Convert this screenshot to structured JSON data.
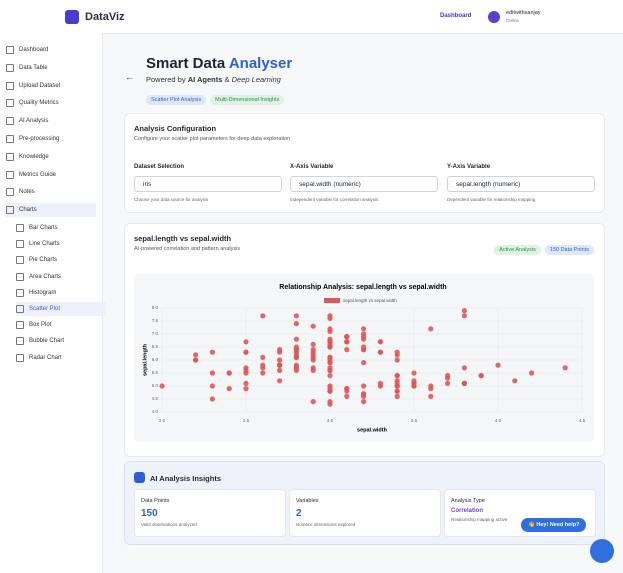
{
  "header": {
    "brand": "DataViz",
    "nav": "Dashboard",
    "user": "editwithsanjay",
    "status": "Online"
  },
  "sidebar": {
    "items": [
      "Dashboard",
      "Data Table",
      "Upload Dataset",
      "Quality Metrics",
      "AI Analysis",
      "Pre-processing",
      "Knowledge",
      "Metrics Guide",
      "Notes",
      "Charts"
    ],
    "subitems": [
      "Bar Charts",
      "Line Charts",
      "Pie Charts",
      "Area Charts",
      "Histogram",
      "Scatter Plot",
      "Box Plot",
      "Bubble Chart",
      "Radar Chart"
    ]
  },
  "hero": {
    "title": "Smart Data",
    "title_highlight": "Analyser",
    "powered": "Powered by",
    "agents": "AI Agents",
    "amp": "&",
    "deep": "Deep Learning",
    "badges": [
      "Scatter Plot Analysis",
      "Multi-Dimensional Insights"
    ]
  },
  "config": {
    "title": "Analysis Configuration",
    "subtitle": "Configure your scatter plot parameters for deep data exploration",
    "fields": [
      {
        "label": "Dataset Selection",
        "value": "iris",
        "help": "Choose your data source for analysis"
      },
      {
        "label": "X-Axis Variable",
        "value": "sepal.width (numeric)",
        "help": "Independent variable for correlation analysis"
      },
      {
        "label": "Y-Axis Variable",
        "value": "sepal.length (numeric)",
        "help": "Dependent variable for relationship mapping"
      }
    ]
  },
  "chart_card": {
    "title": "sepal.length vs sepal.width",
    "subtitle": "AI-powered correlation and pattern analysis",
    "badges": [
      "Active Analysis",
      "150 Data Points"
    ]
  },
  "chart_data": {
    "type": "scatter",
    "title": "Relationship Analysis: sepal.length vs sepal.width",
    "x_label": "sepal.width",
    "y_label": "sepal.length",
    "xlim": [
      2,
      4.5
    ],
    "xticks": [
      {
        "value": 2,
        "label": "2.0"
      },
      2.5,
      {
        "value": 3,
        "label": "3.0"
      },
      3.5,
      {
        "value": 4,
        "label": "4.0"
      },
      4.5
    ],
    "ylim": [
      4,
      8
    ],
    "yticks": [
      {
        "value": 4,
        "label": "4.0"
      },
      4.5,
      {
        "value": 5,
        "label": "5.0"
      },
      5.5,
      {
        "value": 6,
        "label": "6.0"
      },
      6.5,
      {
        "value": 7,
        "label": "7.0"
      },
      7.5,
      {
        "value": 8,
        "label": "8.0"
      }
    ],
    "grid": true,
    "legend": "top",
    "x": [
      3.5,
      3.0,
      3.2,
      3.1,
      3.6,
      3.9,
      3.4,
      3.4,
      2.9,
      3.1,
      3.7,
      3.4,
      3.0,
      3.0,
      4.0,
      4.4,
      3.9,
      3.5,
      3.8,
      3.8,
      3.4,
      3.7,
      3.6,
      3.3,
      3.4,
      3.0,
      3.4,
      3.5,
      3.4,
      3.2,
      3.1,
      3.4,
      4.1,
      4.2,
      3.1,
      3.2,
      3.5,
      3.6,
      3.0,
      3.4,
      3.5,
      2.3,
      3.2,
      3.5,
      3.8,
      3.0,
      3.8,
      3.2,
      3.7,
      3.3,
      3.2,
      3.2,
      3.1,
      2.3,
      2.8,
      2.8,
      3.3,
      2.4,
      2.9,
      2.7,
      2.0,
      3.0,
      2.2,
      2.9,
      2.9,
      3.1,
      3.0,
      2.7,
      2.2,
      2.5,
      3.2,
      2.8,
      2.5,
      2.8,
      2.9,
      3.0,
      2.8,
      3.0,
      2.9,
      2.6,
      2.4,
      2.4,
      2.7,
      2.7,
      3.0,
      3.4,
      3.1,
      2.3,
      3.0,
      2.5,
      2.6,
      3.0,
      2.6,
      2.3,
      2.7,
      3.0,
      2.9,
      2.9,
      2.5,
      2.8,
      3.3,
      2.7,
      3.0,
      2.9,
      3.0,
      3.0,
      2.5,
      2.9,
      2.5,
      3.6,
      3.2,
      2.7,
      3.0,
      2.5,
      2.8,
      3.2,
      3.0,
      3.8,
      2.6,
      2.2,
      3.2,
      2.8,
      2.8,
      2.7,
      3.3,
      3.2,
      2.8,
      3.0,
      2.8,
      3.0,
      2.8,
      3.8,
      2.8,
      2.8,
      2.6,
      3.0,
      3.4,
      3.1,
      3.0,
      3.1,
      3.1,
      3.1,
      2.7,
      3.2,
      3.3,
      3.0,
      2.5,
      3.0,
      3.4,
      3.0
    ],
    "series": [
      {
        "name": "sepal.length vs sepal.width",
        "color": "#e05656",
        "values": [
          5.1,
          4.9,
          4.7,
          4.6,
          5.0,
          5.4,
          4.6,
          5.0,
          4.4,
          4.9,
          5.4,
          4.8,
          4.8,
          4.3,
          5.8,
          5.7,
          5.4,
          5.1,
          5.7,
          5.1,
          5.4,
          5.1,
          4.6,
          5.1,
          4.8,
          5.0,
          5.0,
          5.2,
          5.2,
          4.7,
          4.8,
          5.4,
          5.2,
          5.5,
          4.9,
          5.0,
          5.5,
          4.9,
          4.4,
          5.1,
          5.0,
          4.5,
          4.4,
          5.0,
          5.1,
          4.8,
          5.1,
          4.6,
          5.3,
          5.0,
          7.0,
          6.4,
          6.9,
          5.5,
          6.5,
          5.7,
          6.3,
          4.9,
          6.6,
          5.2,
          5.0,
          5.9,
          6.0,
          6.1,
          5.6,
          6.7,
          5.6,
          5.8,
          6.2,
          5.6,
          5.9,
          6.1,
          6.3,
          6.1,
          6.4,
          6.6,
          6.8,
          6.7,
          6.0,
          5.7,
          5.5,
          5.5,
          5.8,
          6.0,
          5.4,
          6.0,
          6.7,
          6.3,
          5.6,
          5.5,
          5.5,
          6.1,
          5.8,
          5.0,
          5.6,
          5.7,
          5.7,
          6.2,
          5.1,
          5.7,
          6.3,
          5.8,
          7.1,
          6.3,
          6.5,
          7.6,
          4.9,
          7.3,
          6.7,
          7.2,
          6.5,
          6.4,
          6.8,
          5.7,
          5.8,
          6.4,
          6.5,
          7.7,
          7.7,
          6.0,
          6.9,
          5.6,
          7.7,
          6.3,
          6.7,
          7.2,
          6.2,
          6.1,
          6.4,
          7.2,
          7.4,
          7.9,
          6.4,
          6.3,
          6.1,
          7.7,
          6.3,
          6.4,
          6.0,
          6.9,
          6.7,
          6.9,
          5.8,
          6.8,
          6.7,
          6.7,
          6.3,
          6.5,
          6.2,
          5.9
        ]
      }
    ]
  },
  "insights": {
    "title": "AI Analysis Insights",
    "cards": [
      {
        "label": "Data Points",
        "value": 150,
        "note": "Valid observations analyzed"
      },
      {
        "label": "Variables",
        "value": 2,
        "note": "Numeric dimensions explored"
      },
      {
        "label": "Analysis Type",
        "value": "Correlation",
        "note": "Relationship mapping active"
      }
    ]
  },
  "help": "👋 Hey! Need help?"
}
